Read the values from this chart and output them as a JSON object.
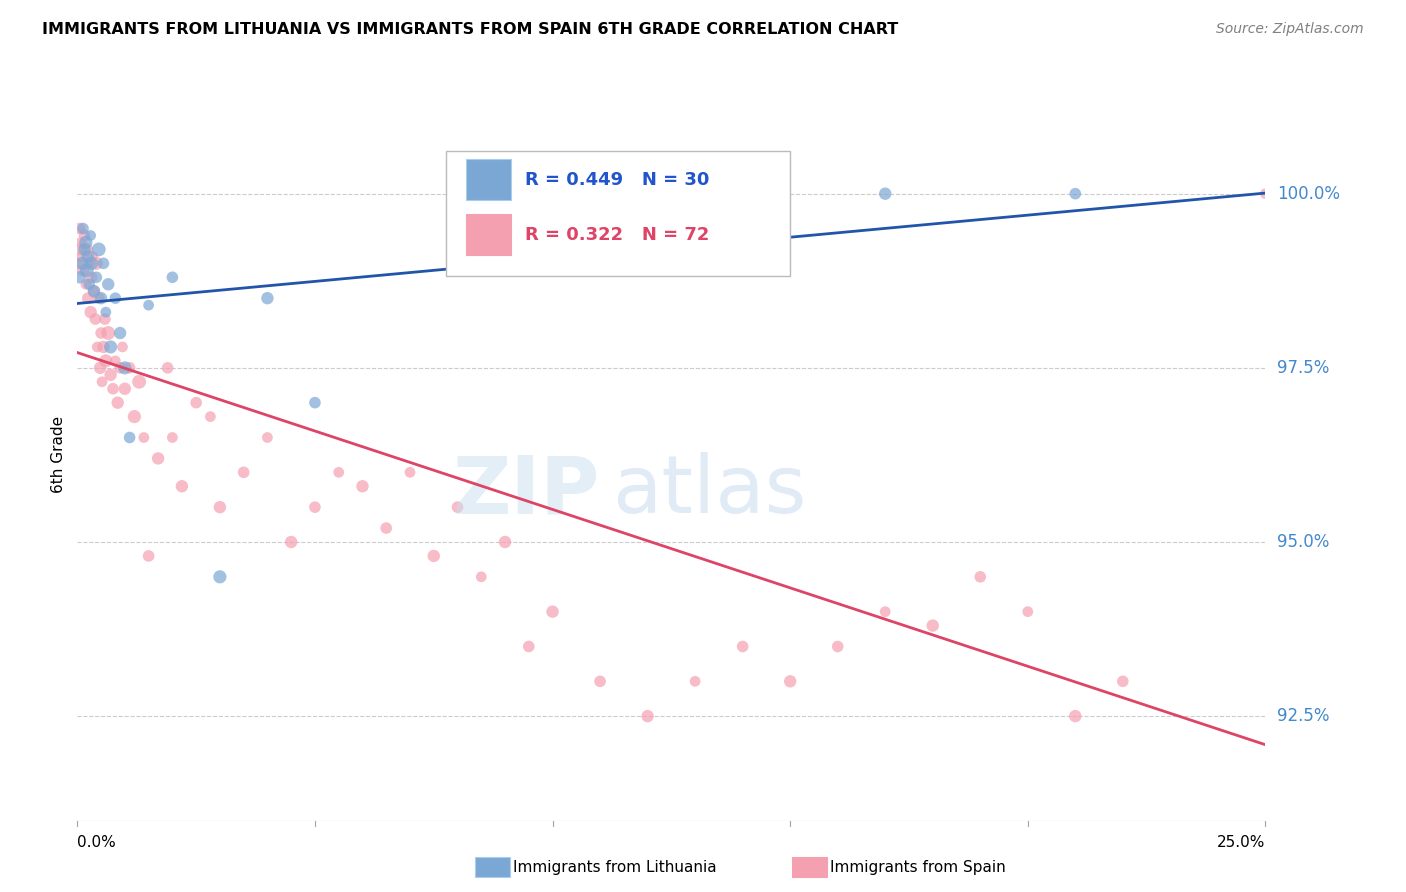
{
  "title": "IMMIGRANTS FROM LITHUANIA VS IMMIGRANTS FROM SPAIN 6TH GRADE CORRELATION CHART",
  "source": "Source: ZipAtlas.com",
  "ylabel": "6th Grade",
  "xlim": [
    0.0,
    25.0
  ],
  "ylim": [
    91.0,
    101.5
  ],
  "ytick_values": [
    92.5,
    95.0,
    97.5,
    100.0
  ],
  "ytick_labels": [
    "92.5%",
    "95.0%",
    "97.5%",
    "100.0%"
  ],
  "blue_color": "#7ba7d4",
  "pink_color": "#f4a0b0",
  "blue_line_color": "#2255aa",
  "pink_line_color": "#dd4466",
  "legend_text_color_blue": "#2255cc",
  "legend_text_color_pink": "#dd4466",
  "scatter_blue": {
    "x": [
      0.05,
      0.1,
      0.12,
      0.15,
      0.18,
      0.2,
      0.22,
      0.25,
      0.28,
      0.3,
      0.35,
      0.4,
      0.45,
      0.5,
      0.55,
      0.6,
      0.65,
      0.7,
      0.8,
      0.9,
      1.0,
      1.1,
      1.5,
      2.0,
      3.0,
      4.0,
      5.0,
      12.0,
      17.0,
      21.0
    ],
    "y": [
      98.8,
      99.0,
      99.5,
      99.2,
      99.3,
      98.9,
      99.1,
      98.7,
      99.4,
      99.0,
      98.6,
      98.8,
      99.2,
      98.5,
      99.0,
      98.3,
      98.7,
      97.8,
      98.5,
      98.0,
      97.5,
      96.5,
      98.4,
      98.8,
      94.5,
      98.5,
      97.0,
      100.0,
      100.0,
      100.0
    ],
    "size": [
      80,
      90,
      70,
      80,
      90,
      100,
      80,
      70,
      60,
      90,
      80,
      70,
      100,
      80,
      70,
      60,
      80,
      90,
      70,
      80,
      90,
      70,
      60,
      70,
      90,
      80,
      70,
      90,
      80,
      70
    ]
  },
  "scatter_pink": {
    "x": [
      0.03,
      0.05,
      0.07,
      0.08,
      0.1,
      0.12,
      0.15,
      0.18,
      0.2,
      0.22,
      0.25,
      0.28,
      0.3,
      0.32,
      0.35,
      0.38,
      0.4,
      0.42,
      0.45,
      0.48,
      0.5,
      0.52,
      0.55,
      0.58,
      0.6,
      0.65,
      0.7,
      0.75,
      0.8,
      0.85,
      0.9,
      0.95,
      1.0,
      1.1,
      1.2,
      1.3,
      1.4,
      1.5,
      1.7,
      1.9,
      2.0,
      2.2,
      2.5,
      2.8,
      3.0,
      3.5,
      4.0,
      4.5,
      5.0,
      5.5,
      6.0,
      6.5,
      7.0,
      7.5,
      8.0,
      8.5,
      9.0,
      9.5,
      10.0,
      11.0,
      12.0,
      13.0,
      14.0,
      15.0,
      16.0,
      17.0,
      18.0,
      19.0,
      20.0,
      21.0,
      22.0,
      25.0
    ],
    "y": [
      99.0,
      99.5,
      99.2,
      99.3,
      99.1,
      98.9,
      99.4,
      98.7,
      99.2,
      98.5,
      99.0,
      98.3,
      98.8,
      99.1,
      98.6,
      98.2,
      99.0,
      97.8,
      98.5,
      97.5,
      98.0,
      97.3,
      97.8,
      98.2,
      97.6,
      98.0,
      97.4,
      97.2,
      97.6,
      97.0,
      97.5,
      97.8,
      97.2,
      97.5,
      96.8,
      97.3,
      96.5,
      94.8,
      96.2,
      97.5,
      96.5,
      95.8,
      97.0,
      96.8,
      95.5,
      96.0,
      96.5,
      95.0,
      95.5,
      96.0,
      95.8,
      95.2,
      96.0,
      94.8,
      95.5,
      94.5,
      95.0,
      93.5,
      94.0,
      93.0,
      92.5,
      93.0,
      93.5,
      93.0,
      93.5,
      94.0,
      93.8,
      94.5,
      94.0,
      92.5,
      93.0,
      100.0
    ],
    "size": [
      60,
      70,
      80,
      60,
      70,
      80,
      70,
      60,
      80,
      70,
      60,
      80,
      70,
      60,
      80,
      70,
      90,
      60,
      70,
      80,
      70,
      60,
      80,
      70,
      90,
      100,
      80,
      70,
      60,
      80,
      70,
      60,
      80,
      70,
      90,
      100,
      60,
      70,
      80,
      70,
      60,
      80,
      70,
      60,
      80,
      70,
      60,
      80,
      70,
      60,
      80,
      70,
      60,
      80,
      70,
      60,
      80,
      70,
      80,
      70,
      80,
      60,
      70,
      80,
      70,
      60,
      80,
      70,
      60,
      80,
      70,
      60
    ]
  }
}
